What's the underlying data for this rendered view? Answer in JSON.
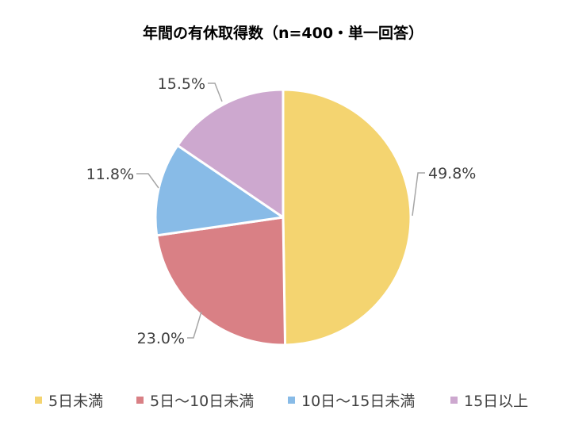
{
  "chart_data": {
    "type": "pie",
    "title": "年間の有休取得数（n=400・単一回答）",
    "slices": [
      {
        "label": "5日未満",
        "value": 49.8,
        "display": "49.8%",
        "color": "#F4D470"
      },
      {
        "label": "5日～10日未満",
        "value": 23.0,
        "display": "23.0%",
        "color": "#D98085"
      },
      {
        "label": "10日～15日未満",
        "value": 11.8,
        "display": "11.8%",
        "color": "#88BBE7"
      },
      {
        "label": "15日以上",
        "value": 15.5,
        "display": "15.5%",
        "color": "#CDA8CF"
      }
    ],
    "start_angle": "12 o'clock",
    "direction": "clockwise",
    "legend_position": "bottom"
  }
}
